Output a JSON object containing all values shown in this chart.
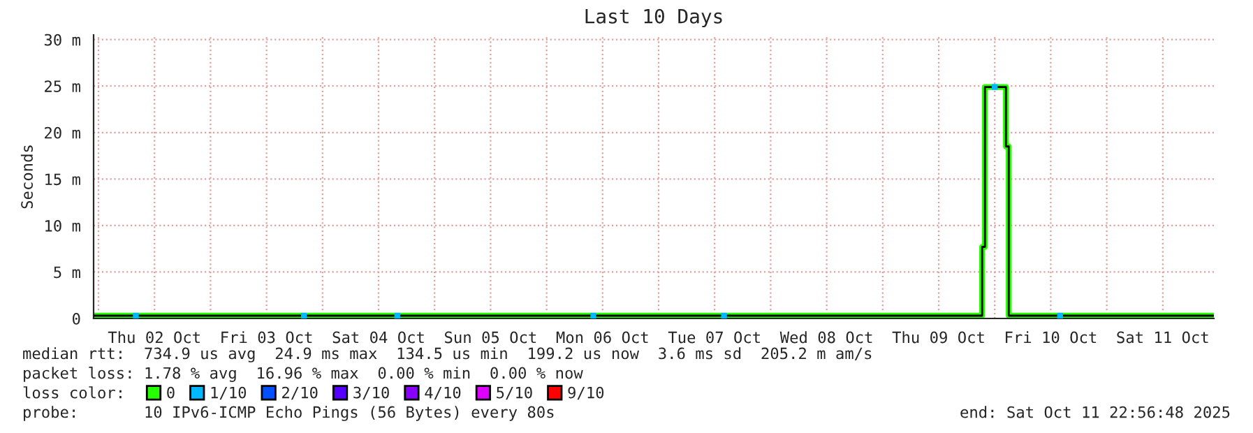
{
  "chart_data": {
    "type": "step",
    "title": "Last 10 Days",
    "ylabel": "Seconds",
    "x": [
      "2025-10-01T22:57",
      "2025-10-02T06:00",
      "2025-10-02T18:00",
      "2025-10-03T06:00",
      "2025-10-03T18:00",
      "2025-10-04T06:00",
      "2025-10-04T18:00",
      "2025-10-05T06:00",
      "2025-10-05T18:00",
      "2025-10-06T06:00",
      "2025-10-06T18:00",
      "2025-10-07T06:00",
      "2025-10-07T18:00",
      "2025-10-08T06:00",
      "2025-10-08T18:00",
      "2025-10-09T06:00",
      "2025-10-09T18:00",
      "2025-10-09T21:18",
      "2025-10-09T21:54",
      "2025-10-10T00:00",
      "2025-10-10T02:24",
      "2025-10-10T03:00",
      "2025-10-10T12:00",
      "2025-10-11T00:00",
      "2025-10-11T12:00",
      "2025-10-11T22:57"
    ],
    "series": [
      {
        "name": "0",
        "color": "#26ff00",
        "values": [
          0.3,
          0.3,
          0.3,
          0.3,
          0.3,
          0.3,
          0.3,
          0.3,
          0.3,
          0.3,
          0.3,
          0.3,
          0.3,
          0.3,
          0.3,
          0.3,
          0.3,
          7.7,
          24.9,
          24.9,
          18.5,
          0.3,
          0.3,
          0.3,
          0.3,
          0.3
        ]
      },
      {
        "color": "#000000",
        "values": [
          0.3,
          0.3,
          0.3,
          0.3,
          0.3,
          0.3,
          0.3,
          0.3,
          0.3,
          0.3,
          0.3,
          0.3,
          0.3,
          0.3,
          0.3,
          0.3,
          0.3,
          7.7,
          24.9,
          24.9,
          18.5,
          0.3,
          0.3,
          0.3,
          0.3,
          0.3
        ]
      },
      {
        "name": "1/10",
        "color": "#00b8ff",
        "type": "scatter",
        "marker": "square",
        "x": [
          "2025-10-02T08:00",
          "2025-10-03T20:00",
          "2025-10-04T16:00",
          "2025-10-06T10:00",
          "2025-10-07T14:00",
          "2025-10-10T00:00",
          "2025-10-10T14:00"
        ],
        "values": [
          0.3,
          0.3,
          0.3,
          0.3,
          0.3,
          24.9,
          0.3
        ]
      },
      {
        "name": "2/10",
        "color": "#0050ff",
        "values": [
          null,
          null,
          null,
          null,
          null,
          null,
          null,
          null,
          null,
          null,
          null,
          null,
          null,
          null,
          null,
          null,
          null,
          null,
          null,
          null,
          null,
          null,
          null,
          null,
          null,
          null
        ]
      },
      {
        "name": "3/10",
        "color": "#5500ff",
        "values": [
          null,
          null,
          null,
          null,
          null,
          null,
          null,
          null,
          null,
          null,
          null,
          null,
          null,
          null,
          null,
          null,
          null,
          null,
          null,
          null,
          null,
          null,
          null,
          null,
          null,
          null
        ]
      },
      {
        "name": "4/10",
        "color": "#8800ff",
        "values": [
          null,
          null,
          null,
          null,
          null,
          null,
          null,
          null,
          null,
          null,
          null,
          null,
          null,
          null,
          null,
          null,
          null,
          null,
          null,
          null,
          null,
          null,
          null,
          null,
          null,
          null
        ]
      },
      {
        "name": "5/10",
        "color": "#dd00ff",
        "values": [
          null,
          null,
          null,
          null,
          null,
          null,
          null,
          null,
          null,
          null,
          null,
          null,
          null,
          null,
          null,
          null,
          null,
          null,
          null,
          null,
          null,
          null,
          null,
          null,
          null,
          null
        ]
      },
      {
        "name": "9/10",
        "color": "#ff0000",
        "values": [
          null,
          null,
          null,
          null,
          null,
          null,
          null,
          null,
          null,
          null,
          null,
          null,
          null,
          null,
          null,
          null,
          null,
          null,
          null,
          null,
          null,
          null,
          null,
          null,
          null,
          null
        ]
      }
    ],
    "xlim": [
      "2025-10-01T22:57",
      "2025-10-11T22:57"
    ],
    "xticks": [
      {
        "value": "2025-10-02",
        "label": null
      },
      {
        "value": "2025-10-02T12:00",
        "label": "Thu 02 Oct"
      },
      {
        "value": "2025-10-03",
        "label": null
      },
      {
        "value": "2025-10-03T12:00",
        "label": "Fri 03 Oct"
      },
      {
        "value": "2025-10-04",
        "label": null
      },
      {
        "value": "2025-10-04T12:00",
        "label": "Sat 04 Oct"
      },
      {
        "value": "2025-10-05",
        "label": null
      },
      {
        "value": "2025-10-05T12:00",
        "label": "Sun 05 Oct"
      },
      {
        "value": "2025-10-06",
        "label": null
      },
      {
        "value": "2025-10-06T12:00",
        "label": "Mon 06 Oct"
      },
      {
        "value": "2025-10-07",
        "label": null
      },
      {
        "value": "2025-10-07T12:00",
        "label": "Tue 07 Oct"
      },
      {
        "value": "2025-10-08",
        "label": null
      },
      {
        "value": "2025-10-08T12:00",
        "label": "Wed 08 Oct"
      },
      {
        "value": "2025-10-09",
        "label": null
      },
      {
        "value": "2025-10-09T12:00",
        "label": "Thu 09 Oct"
      },
      {
        "value": "2025-10-10",
        "label": null
      },
      {
        "value": "2025-10-10T12:00",
        "label": "Fri 10 Oct"
      },
      {
        "value": "2025-10-11",
        "label": null
      },
      {
        "value": "2025-10-11T12:00",
        "label": "Sat 11 Oct"
      }
    ],
    "ylim": [
      0,
      30.5
    ],
    "yticks": [
      0,
      {
        "value": 5,
        "label": "5 m"
      },
      {
        "value": 10,
        "label": "10 m"
      },
      {
        "value": 15,
        "label": "15 m"
      },
      {
        "value": 20,
        "label": "20 m"
      },
      {
        "value": 25,
        "label": "25 m"
      },
      {
        "value": 30,
        "label": "30 m"
      }
    ],
    "grid": true,
    "legend": "bottom",
    "annotations": [
      "median rtt:  734.9 us avg  24.9 ms max  134.5 us min  199.2 us now  3.6 ms sd  205.2 m am/s",
      "packet loss: 1.78 % avg  16.96 % max  0.00 % min  0.00 % now",
      "loss color:",
      "probe:       10 IPv6-ICMP Echo Pings (56 Bytes) every 80s",
      "end: Sat Oct 11 22:56:48 2025"
    ]
  }
}
